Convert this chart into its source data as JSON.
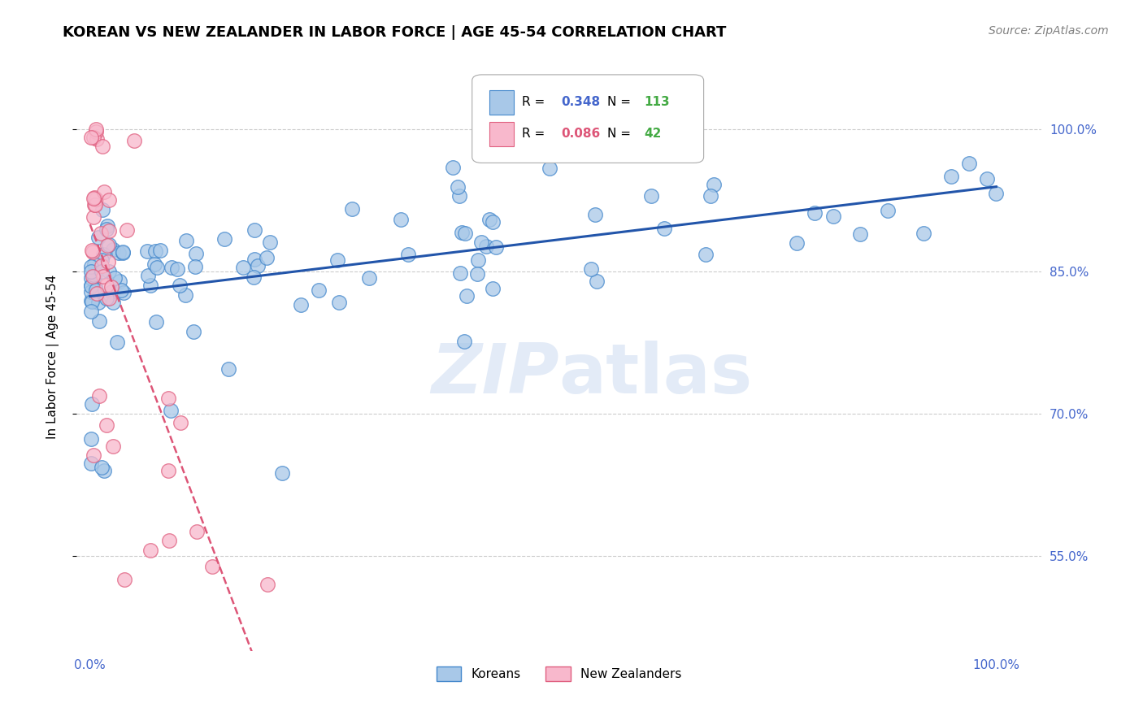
{
  "title": "KOREAN VS NEW ZEALANDER IN LABOR FORCE | AGE 45-54 CORRELATION CHART",
  "source": "Source: ZipAtlas.com",
  "ylabel": "In Labor Force | Age 45-54",
  "blue_R": 0.348,
  "blue_N": 113,
  "pink_R": 0.086,
  "pink_N": 42,
  "blue_color": "#a8c8e8",
  "blue_edge_color": "#4488cc",
  "blue_line_color": "#2255aa",
  "pink_color": "#f8b8cc",
  "pink_edge_color": "#e06080",
  "pink_line_color": "#dd5577",
  "watermark_color": "#c8d8f0",
  "grid_color": "#cccccc",
  "tick_color": "#4466cc",
  "ytick_labels": [
    "55.0%",
    "70.0%",
    "85.0%",
    "100.0%"
  ],
  "ytick_vals": [
    0.55,
    0.7,
    0.85,
    1.0
  ],
  "legend_entries": [
    "Koreans",
    "New Zealanders"
  ],
  "title_fontsize": 13,
  "label_fontsize": 11,
  "tick_fontsize": 11,
  "source_fontsize": 10
}
